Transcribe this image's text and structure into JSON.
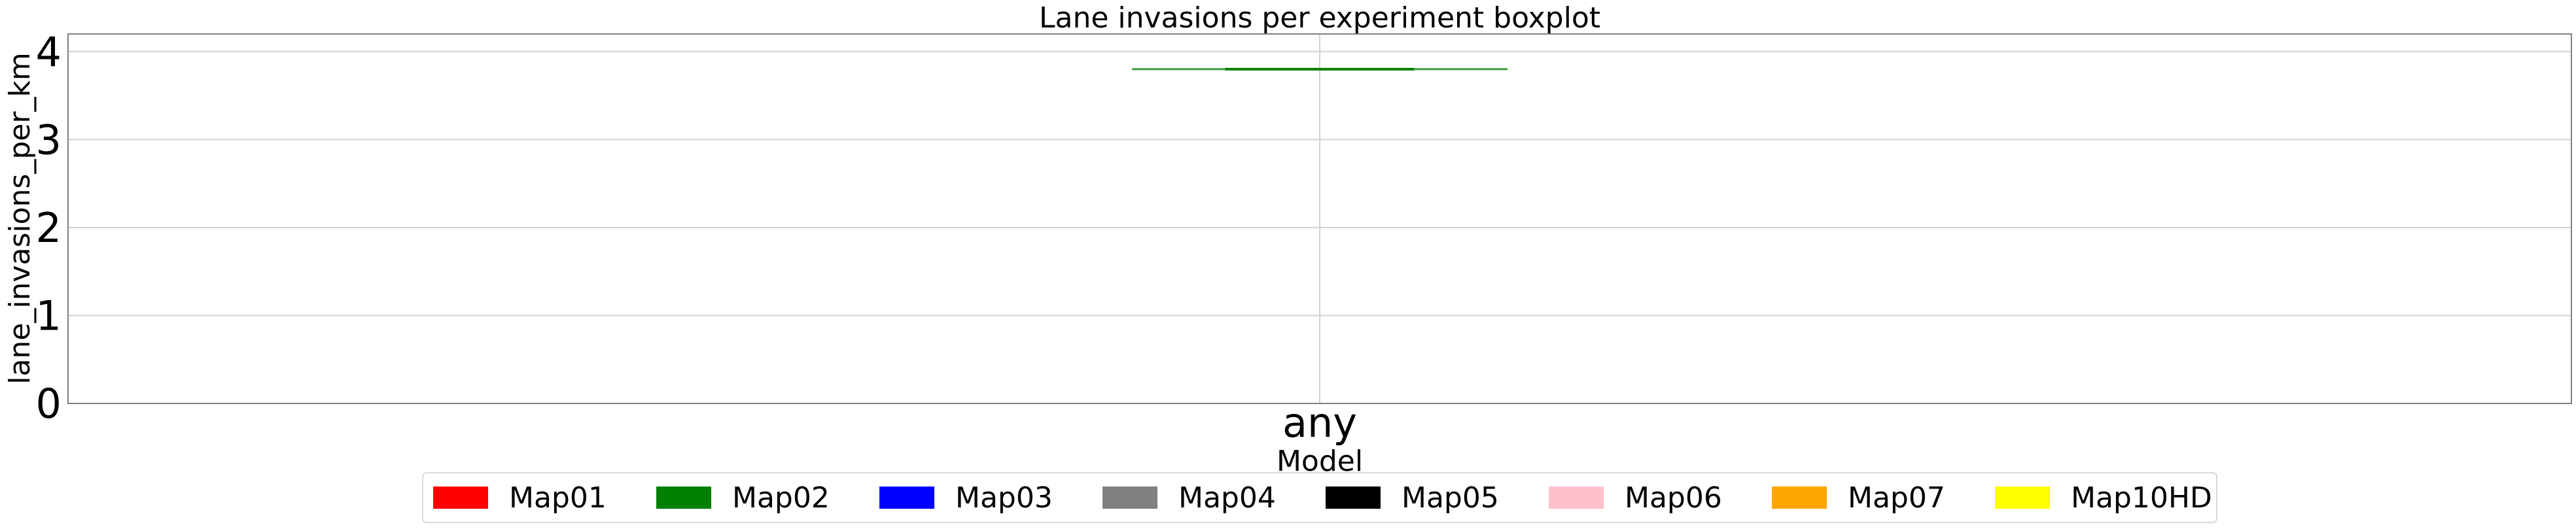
{
  "chart_data": {
    "type": "boxplot",
    "title": "Lane invasions per experiment boxplot",
    "xlabel": "Model",
    "ylabel": "lane_invasions_per_km",
    "categories": [
      "any"
    ],
    "ylim": [
      0,
      4.2
    ],
    "yticks": [
      0,
      1,
      2,
      3,
      4
    ],
    "grid": true,
    "legend_position": "bottom",
    "series": [
      {
        "name": "Map02",
        "color": "#008000",
        "category": "any",
        "min": 3.8,
        "q1": 3.8,
        "median": 3.8,
        "q3": 3.8,
        "max": 3.8
      }
    ],
    "legend": [
      {
        "name": "Map01",
        "color": "#ff0000"
      },
      {
        "name": "Map02",
        "color": "#008000"
      },
      {
        "name": "Map03",
        "color": "#0000ff"
      },
      {
        "name": "Map04",
        "color": "#808080"
      },
      {
        "name": "Map05",
        "color": "#000000"
      },
      {
        "name": "Map06",
        "color": "#ffc0cb"
      },
      {
        "name": "Map07",
        "color": "#ffa500"
      },
      {
        "name": "Map10HD",
        "color": "#ffff00"
      }
    ]
  }
}
